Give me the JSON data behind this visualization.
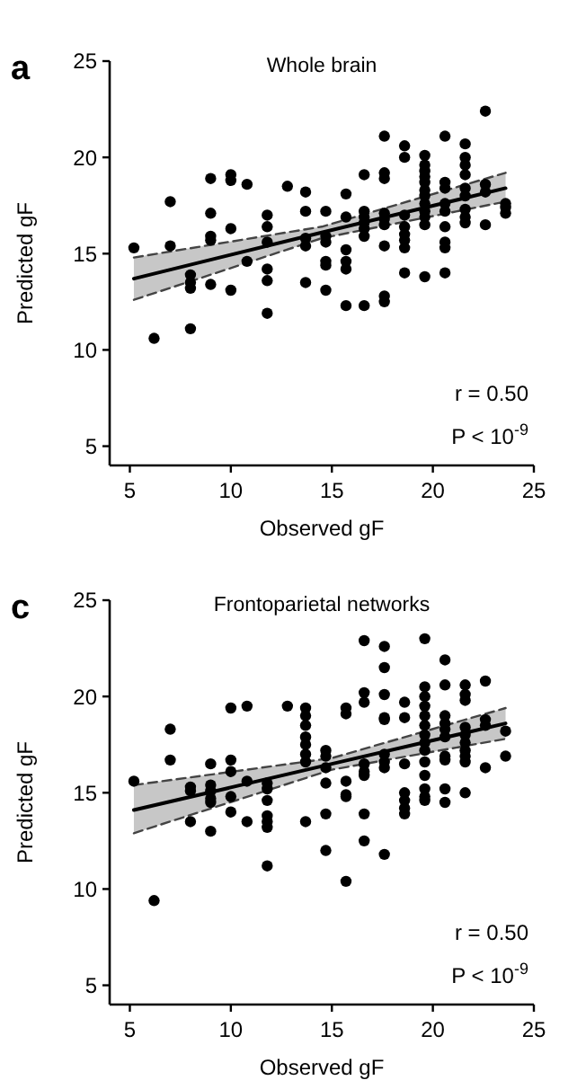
{
  "chart_data": [
    {
      "type": "scatter",
      "title": "Whole brain",
      "xlabel": "Observed gF",
      "ylabel": "Predicted gF",
      "xlim": [
        4,
        25
      ],
      "ylim": [
        4,
        25
      ],
      "xticks": [
        5,
        10,
        15,
        20,
        25
      ],
      "yticks": [
        5,
        10,
        15,
        20,
        25
      ],
      "grid": false,
      "annotations": [
        "a",
        "r = 0.50",
        "P < 10$^{-9}$"
      ],
      "series": [
        {
          "marker": "circle",
          "color": "#000000",
          "x": [
            5.2,
            6.2,
            7,
            7,
            8,
            8,
            8,
            8,
            9,
            9,
            9,
            9,
            9,
            10,
            10,
            10,
            10,
            10.8,
            10.8,
            11.8,
            11.8,
            11.8,
            11.8,
            11.8,
            11.8,
            12.8,
            13.7,
            13.7,
            13.7,
            13.7,
            13.7,
            14.7,
            14.7,
            14.7,
            14.7,
            14.7,
            14.7,
            15.7,
            15.7,
            15.7,
            15.7,
            15.7,
            15.7,
            16.6,
            16.6,
            16.6,
            16.6,
            16.6,
            16.6,
            16.6,
            17.6,
            17.6,
            17.6,
            17.6,
            17.6,
            17.6,
            17.6,
            17.6,
            17.6,
            18.6,
            18.6,
            18.6,
            18.6,
            18.6,
            18.6,
            18.6,
            18.6,
            19.6,
            19.6,
            19.6,
            19.6,
            19.6,
            19.6,
            19.6,
            19.6,
            19.6,
            19.6,
            19.6,
            19.6,
            20.6,
            20.6,
            20.6,
            20.6,
            20.6,
            20.6,
            20.6,
            20.6,
            20.6,
            21.6,
            21.6,
            21.6,
            21.6,
            21.6,
            21.6,
            21.6,
            21.6,
            21.6,
            22.6,
            22.6,
            22.6,
            22.6,
            23.6,
            23.6,
            23.6
          ],
          "values": [
            15.3,
            10.6,
            17.7,
            15.4,
            13.9,
            13.5,
            13.2,
            11.1,
            18.9,
            17.1,
            15.9,
            15.7,
            13.4,
            19.1,
            18.8,
            16.3,
            13.1,
            18.6,
            14.6,
            17.0,
            16.4,
            15.6,
            14.2,
            13.6,
            11.9,
            18.5,
            18.2,
            17.2,
            15.8,
            15.4,
            13.5,
            17.2,
            15.9,
            15.6,
            14.6,
            14.4,
            13.1,
            18.1,
            16.9,
            15.2,
            14.6,
            14.2,
            12.3,
            19.1,
            17.2,
            16.9,
            16.6,
            16.3,
            15.9,
            12.3,
            21.1,
            19.2,
            18.9,
            17.1,
            16.8,
            16.5,
            15.4,
            12.8,
            12.5,
            20.6,
            20.0,
            17.0,
            16.4,
            16.0,
            15.7,
            15.3,
            14.0,
            20.1,
            19.6,
            19.3,
            19.0,
            18.7,
            18.3,
            18.0,
            17.6,
            17.2,
            16.9,
            16.5,
            13.8,
            21.1,
            18.7,
            18.4,
            17.6,
            17.2,
            16.4,
            15.6,
            15.3,
            14.0,
            20.7,
            20.0,
            19.6,
            19.1,
            18.4,
            18.0,
            17.3,
            16.9,
            16.6,
            22.4,
            18.6,
            18.2,
            16.5,
            17.6,
            17.4,
            17.1
          ]
        },
        {
          "type": "line",
          "color": "#000000",
          "line_style": "solid",
          "x": [
            5.2,
            14.5,
            23.6
          ],
          "values": [
            13.7,
            16.1,
            18.4
          ],
          "lower": [
            12.6,
            15.8,
            17.7
          ],
          "upper": [
            14.8,
            16.4,
            19.2
          ]
        },
        {
          "type": "line",
          "color": "#444444",
          "line_style": "dashed",
          "x": [
            5.2,
            14.5,
            23.6
          ],
          "values": [
            12.6,
            15.8,
            17.7
          ]
        },
        {
          "type": "line",
          "color": "#444444",
          "line_style": "dashed",
          "x": [
            5.2,
            14.5,
            23.6
          ],
          "values": [
            14.8,
            16.4,
            19.2
          ]
        }
      ]
    },
    {
      "type": "scatter",
      "title": "Frontoparietal networks",
      "xlabel": "Observed gF",
      "ylabel": "Predicted gF",
      "xlim": [
        4,
        25
      ],
      "ylim": [
        4,
        25
      ],
      "xticks": [
        5,
        10,
        15,
        20,
        25
      ],
      "yticks": [
        5,
        10,
        15,
        20,
        25
      ],
      "grid": false,
      "annotations": [
        "c",
        "r = 0.50",
        "P < 10$^{-9}$"
      ],
      "series": [
        {
          "marker": "circle",
          "color": "#000000",
          "x": [
            5.2,
            6.2,
            7,
            7,
            8,
            8,
            8,
            9,
            9,
            9,
            9,
            9,
            9,
            10,
            10,
            10,
            10,
            10,
            10.8,
            10.8,
            10.8,
            11.8,
            11.8,
            11.8,
            11.8,
            11.8,
            11.8,
            11.8,
            12.8,
            13.7,
            13.7,
            13.7,
            13.7,
            13.7,
            13.7,
            13.7,
            13.7,
            14.7,
            14.7,
            14.7,
            14.7,
            14.7,
            14.7,
            15.7,
            15.7,
            15.7,
            15.7,
            15.7,
            15.7,
            16.6,
            16.6,
            16.6,
            16.6,
            16.6,
            16.6,
            16.6,
            16.6,
            17.6,
            17.6,
            17.6,
            17.6,
            17.6,
            17.6,
            17.6,
            17.6,
            17.6,
            18.6,
            18.6,
            18.6,
            18.6,
            18.6,
            18.6,
            18.6,
            19.6,
            19.6,
            19.6,
            19.6,
            19.6,
            19.6,
            19.6,
            19.6,
            19.6,
            19.6,
            19.6,
            19.6,
            19.6,
            19.6,
            20.6,
            20.6,
            20.6,
            20.6,
            20.6,
            20.6,
            20.6,
            20.6,
            20.6,
            20.6,
            21.6,
            21.6,
            21.6,
            21.6,
            21.6,
            21.6,
            21.6,
            21.6,
            21.6,
            21.6,
            22.6,
            22.6,
            22.6,
            22.6,
            23.6,
            23.6
          ],
          "values": [
            15.6,
            9.4,
            18.3,
            16.7,
            15.3,
            15.1,
            13.5,
            16.5,
            15.4,
            15.1,
            14.7,
            14.5,
            13.0,
            19.4,
            16.7,
            16.1,
            14.8,
            14.0,
            19.5,
            15.6,
            13.5,
            15.5,
            15.2,
            14.6,
            13.8,
            13.5,
            13.2,
            11.2,
            19.5,
            19.4,
            19.0,
            18.5,
            17.9,
            17.5,
            17.0,
            16.6,
            13.5,
            17.2,
            16.9,
            16.3,
            15.5,
            13.9,
            12.0,
            19.4,
            19.1,
            15.6,
            14.9,
            14.8,
            10.4,
            22.9,
            20.2,
            19.7,
            16.5,
            16.1,
            15.9,
            13.9,
            12.5,
            22.6,
            21.5,
            20.1,
            18.9,
            18.8,
            17.0,
            16.6,
            16.3,
            11.8,
            19.7,
            18.9,
            16.5,
            15.0,
            14.6,
            14.2,
            13.9,
            23.0,
            20.5,
            20.0,
            19.5,
            19.0,
            18.5,
            18.0,
            17.6,
            17.2,
            16.6,
            15.9,
            15.2,
            14.8,
            14.6,
            21.9,
            20.6,
            19.0,
            18.6,
            18.3,
            17.9,
            16.9,
            16.7,
            15.2,
            14.5,
            20.6,
            20.1,
            19.8,
            18.4,
            18.0,
            17.6,
            17.2,
            16.9,
            16.6,
            15.0,
            20.8,
            18.8,
            18.5,
            16.3,
            18.2,
            16.9
          ]
        },
        {
          "type": "line",
          "color": "#000000",
          "line_style": "solid",
          "x": [
            5.2,
            15,
            23.6
          ],
          "values": [
            14.1,
            16.5,
            18.6
          ],
          "lower": [
            12.9,
            16.2,
            17.8
          ],
          "upper": [
            15.4,
            16.8,
            19.4
          ]
        },
        {
          "type": "line",
          "color": "#444444",
          "line_style": "dashed",
          "x": [
            5.2,
            15,
            23.6
          ],
          "values": [
            12.9,
            16.2,
            17.8
          ]
        },
        {
          "type": "line",
          "color": "#444444",
          "line_style": "dashed",
          "x": [
            5.2,
            15,
            23.6
          ],
          "values": [
            15.4,
            16.8,
            19.4
          ]
        }
      ]
    }
  ]
}
